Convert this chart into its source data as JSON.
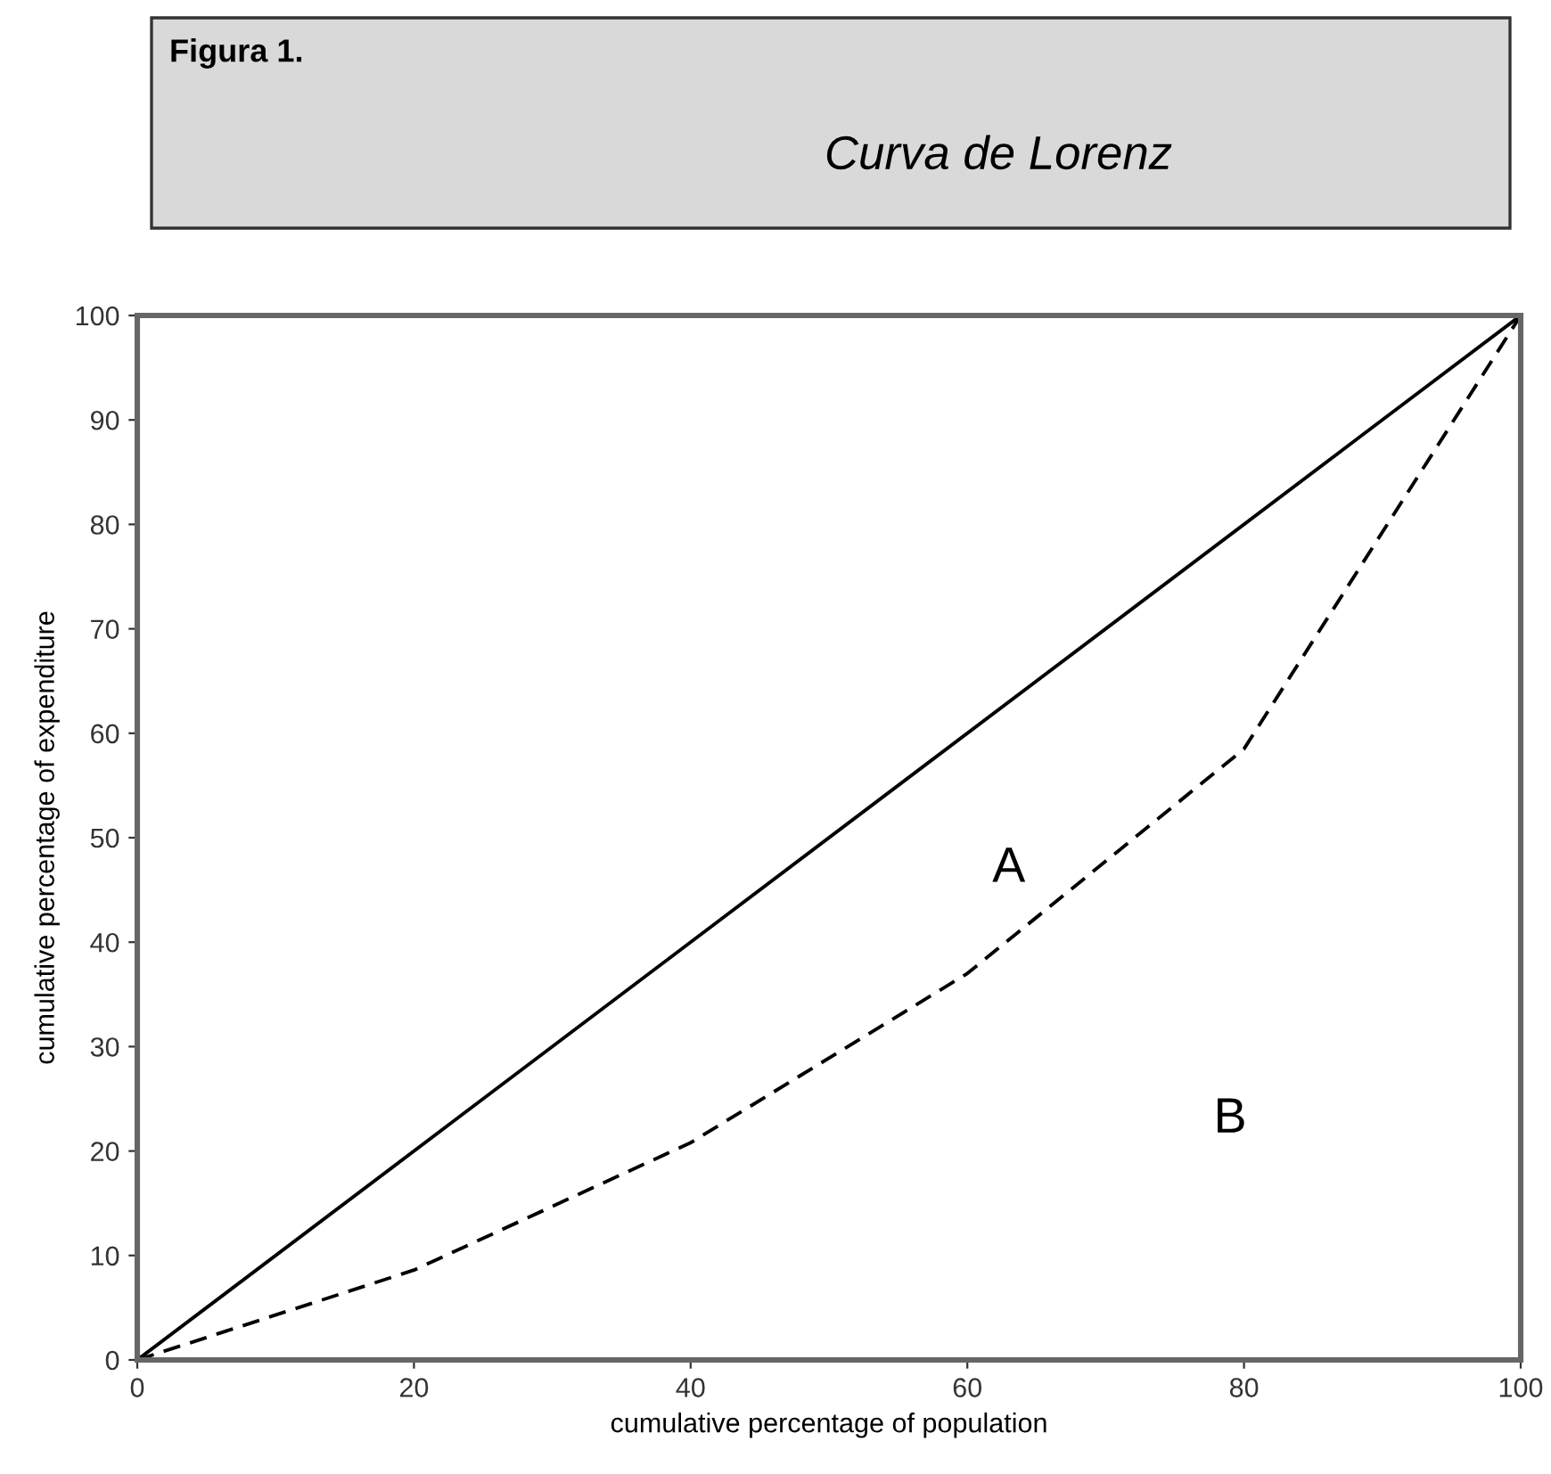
{
  "chart_data": {
    "type": "line",
    "title": "Figura 1.",
    "subtitle": "Curva de Lorenz",
    "xlabel": "cumulative percentage of population",
    "ylabel": "cumulative percentage of expenditure",
    "series": [
      {
        "color": "#000000",
        "line_style": "solid",
        "x": [
          0,
          100
        ],
        "values": [
          0,
          100
        ]
      },
      {
        "color": "#000000",
        "line_style": "dashed",
        "x": [
          0,
          20,
          40,
          60,
          80,
          100
        ],
        "values": [
          0,
          8.6,
          20.8,
          37,
          58.5,
          100
        ]
      }
    ],
    "annotations": [
      "A",
      "B"
    ],
    "xlim": [
      0,
      100
    ],
    "ylim": [
      0,
      100
    ],
    "xticks": [
      0,
      20,
      40,
      60,
      80,
      100
    ],
    "yticks": [
      0,
      10,
      20,
      30,
      40,
      50,
      60,
      70,
      80,
      90,
      100
    ],
    "grid": false,
    "legend": false,
    "marker": "none"
  }
}
